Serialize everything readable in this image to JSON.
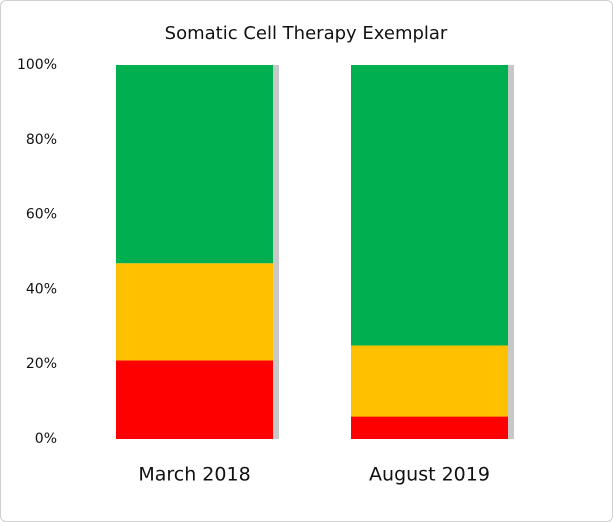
{
  "chart_data": {
    "type": "stacked-bar",
    "title": "Somatic Cell Therapy Exemplar",
    "categories": [
      "March 2018",
      "August 2019"
    ],
    "series": [
      {
        "color": "#ff0000",
        "values": [
          21,
          6
        ]
      },
      {
        "color": "#ffc000",
        "values": [
          26,
          19
        ]
      },
      {
        "color": "#00b050",
        "values": [
          53,
          75
        ]
      }
    ],
    "ylim": [
      0,
      100
    ],
    "yticks": [
      {
        "value": 0,
        "label": "0%"
      },
      {
        "value": 20,
        "label": "20%"
      },
      {
        "value": 40,
        "label": "40%"
      },
      {
        "value": 60,
        "label": "60%"
      },
      {
        "value": 80,
        "label": "80%"
      },
      {
        "value": 100,
        "label": "100%"
      }
    ],
    "grid": false
  }
}
